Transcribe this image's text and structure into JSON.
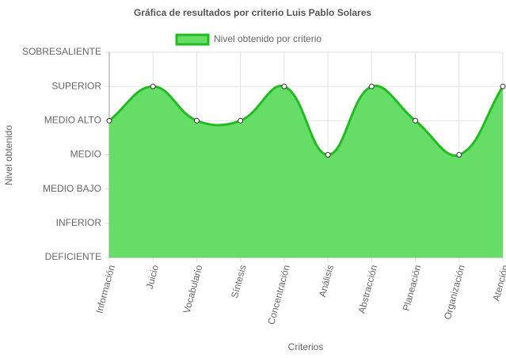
{
  "chart_data": {
    "type": "line",
    "title": "Gráfica de resultados por criterio Luis Pablo Solares",
    "x_label": "Criterios",
    "y_label": "Nivel obtenido",
    "categories": [
      "Información",
      "Juicio",
      "Vocabulario",
      "Síntesis",
      "Concentración",
      "Análisis",
      "Abstracción",
      "Planeación",
      "Organización",
      "Atención"
    ],
    "series": [
      {
        "name": "Nivel obtenido por criterio",
        "color": "#22bb22",
        "fill_color": "#66dd66",
        "values": [
          4,
          5,
          4,
          4,
          5,
          3,
          5,
          4,
          3,
          5
        ]
      }
    ],
    "ylim": [
      0,
      6
    ],
    "yticks": [
      {
        "value": 0,
        "label": "DEFICIENTE"
      },
      {
        "value": 1,
        "label": "INFERIOR"
      },
      {
        "value": 2,
        "label": "MEDIO BAJO"
      },
      {
        "value": 3,
        "label": "MEDIO"
      },
      {
        "value": 4,
        "label": "MEDIO ALTO"
      },
      {
        "value": 5,
        "label": "SUPERIOR"
      },
      {
        "value": 6,
        "label": "SOBRESALIENTE"
      }
    ],
    "grid": true,
    "fill": true,
    "legend": "top"
  }
}
